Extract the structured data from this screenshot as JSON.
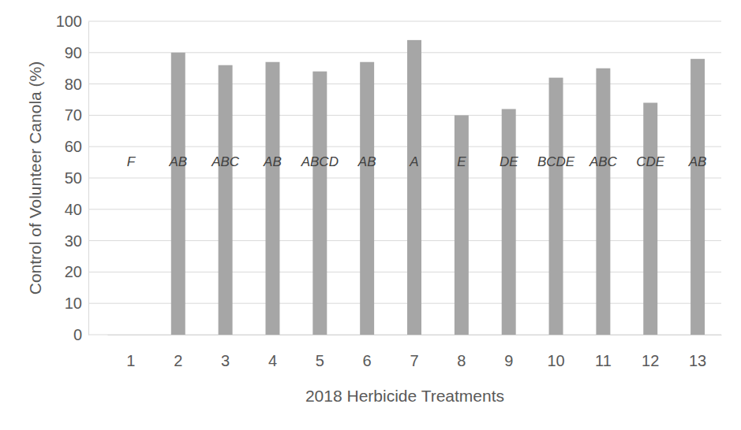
{
  "chart_data": {
    "type": "bar",
    "x_label": "2018 Herbicide Treatments",
    "y_label": "Control of Volunteer Canola (%)",
    "categories": [
      "1",
      "2",
      "3",
      "4",
      "5",
      "6",
      "7",
      "8",
      "9",
      "10",
      "11",
      "12",
      "13"
    ],
    "values": [
      0,
      90,
      86,
      87,
      84,
      87,
      94,
      70,
      72,
      82,
      85,
      74,
      88
    ],
    "annotations": [
      "F",
      "AB",
      "ABC",
      "AB",
      "ABCD",
      "AB",
      "A",
      "E",
      "DE",
      "BCDE",
      "ABC",
      "CDE",
      "AB"
    ],
    "color": "#a6a6a6",
    "ylim": [
      0,
      100
    ],
    "yticks": [
      0,
      10,
      20,
      30,
      40,
      50,
      60,
      70,
      80,
      90,
      100
    ],
    "grid": true
  }
}
